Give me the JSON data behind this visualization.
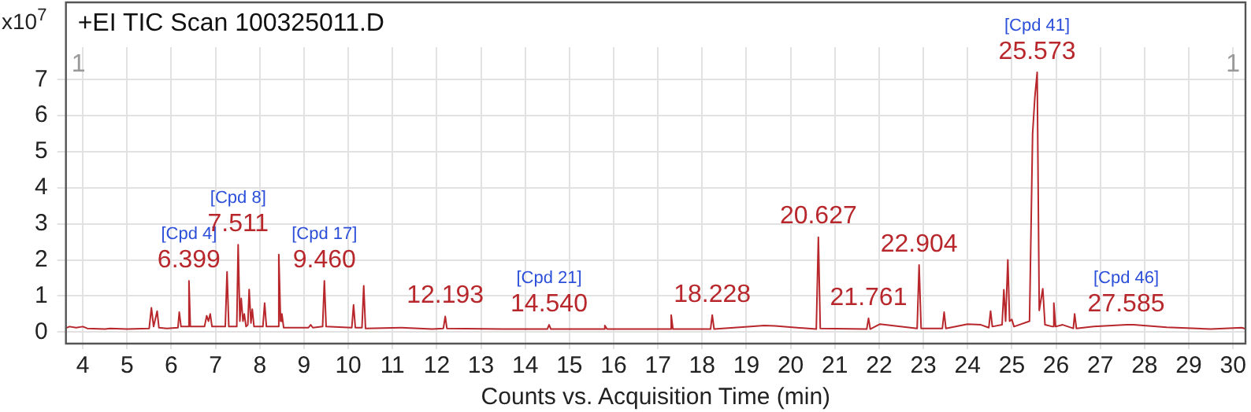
{
  "chart_data": {
    "type": "line",
    "title": "+EI TIC Scan 100325011.D",
    "xlabel": "Counts vs. Acquisition Time (min)",
    "ylabel": "x10$^{7}$",
    "xlim": [
      3.6,
      30.3
    ],
    "xticks": [
      4,
      5,
      6,
      7,
      8,
      9,
      10,
      11,
      12,
      13,
      14,
      15,
      16,
      17,
      18,
      19,
      20,
      21,
      22,
      23,
      24,
      25,
      26,
      27,
      28,
      29,
      30
    ],
    "ylim": [
      -0.3,
      7.9
    ],
    "yticks": [
      0,
      1,
      2,
      3,
      4,
      5,
      6,
      7
    ],
    "grid": true,
    "legend": false,
    "marker": "none",
    "series": [
      {
        "color": "#b8272c",
        "x": [
          3.6,
          3.7,
          3.85,
          4.0,
          4.1,
          4.5,
          4.62,
          5.0,
          5.5,
          5.55,
          5.6,
          5.68,
          5.72,
          5.9,
          6.15,
          6.18,
          6.22,
          6.37,
          6.399,
          6.43,
          6.75,
          6.8,
          6.84,
          6.88,
          6.92,
          7.22,
          7.26,
          7.3,
          7.48,
          7.511,
          7.55,
          7.58,
          7.62,
          7.65,
          7.69,
          7.73,
          7.76,
          7.8,
          7.83,
          7.87,
          8.07,
          8.11,
          8.15,
          8.4,
          8.43,
          8.47,
          8.5,
          8.54,
          9.1,
          9.15,
          9.2,
          9.42,
          9.46,
          9.5,
          10.08,
          10.12,
          10.16,
          10.31,
          10.35,
          10.39,
          11.2,
          11.9,
          12.15,
          12.193,
          12.23,
          13.5,
          14.5,
          14.54,
          14.58,
          15.77,
          15.8,
          15.85,
          17.27,
          17.3,
          17.34,
          18.19,
          18.228,
          18.27,
          19.1,
          19.4,
          19.65,
          20.58,
          20.627,
          20.67,
          21.72,
          21.761,
          21.8,
          22.02,
          22.86,
          22.904,
          22.95,
          23.43,
          23.47,
          23.51,
          24.0,
          24.3,
          24.48,
          24.52,
          24.56,
          24.78,
          24.82,
          24.86,
          24.91,
          24.95,
          25.0,
          25.05,
          25.4,
          25.47,
          25.52,
          25.573,
          25.62,
          25.7,
          25.75,
          25.92,
          25.95,
          25.99,
          26.15,
          26.39,
          26.42,
          26.46,
          26.85,
          27.6,
          27.75,
          28.5,
          29.5,
          30.2,
          30.3
        ],
        "values": [
          0.1,
          0.15,
          0.12,
          0.15,
          0.1,
          0.08,
          0.1,
          0.08,
          0.1,
          0.67,
          0.15,
          0.58,
          0.12,
          0.1,
          0.12,
          0.55,
          0.15,
          0.15,
          1.42,
          0.15,
          0.15,
          0.45,
          0.3,
          0.5,
          0.15,
          0.15,
          1.67,
          0.15,
          0.15,
          2.42,
          0.3,
          0.93,
          0.3,
          0.5,
          0.15,
          0.2,
          1.18,
          0.25,
          0.63,
          0.15,
          0.15,
          0.8,
          0.15,
          0.15,
          2.15,
          0.3,
          0.5,
          0.12,
          0.12,
          0.2,
          0.12,
          0.15,
          1.42,
          0.15,
          0.12,
          0.75,
          0.12,
          0.12,
          1.28,
          0.1,
          0.12,
          0.08,
          0.1,
          0.43,
          0.1,
          0.08,
          0.08,
          0.2,
          0.08,
          0.08,
          0.18,
          0.08,
          0.08,
          0.47,
          0.08,
          0.08,
          0.47,
          0.08,
          0.15,
          0.18,
          0.17,
          0.08,
          2.63,
          0.1,
          0.08,
          0.38,
          0.08,
          0.22,
          0.1,
          1.86,
          0.1,
          0.1,
          0.55,
          0.1,
          0.22,
          0.2,
          0.12,
          0.58,
          0.15,
          0.2,
          1.17,
          0.3,
          2.0,
          0.3,
          0.35,
          0.15,
          0.3,
          5.5,
          6.5,
          7.2,
          0.6,
          1.2,
          0.2,
          0.15,
          0.8,
          0.15,
          0.2,
          0.1,
          0.5,
          0.1,
          0.15,
          0.2,
          0.2,
          0.13,
          0.08,
          0.12,
          0.08
        ]
      }
    ],
    "annotations": [
      "1",
      "1",
      {
        "text": "[Cpd 4]",
        "x": 6.399,
        "y": 1.42
      },
      {
        "text": "6.399",
        "x": 6.399,
        "y": 1.42
      },
      {
        "text": "[Cpd 8]",
        "x": 7.511,
        "y": 2.42
      },
      {
        "text": "7.511",
        "x": 7.511,
        "y": 2.42
      },
      {
        "text": "[Cpd 17]",
        "x": 9.46,
        "y": 1.42
      },
      {
        "text": "9.460",
        "x": 9.46,
        "y": 1.42
      },
      {
        "text": "12.193",
        "x": 12.193,
        "y": 0.43
      },
      {
        "text": "[Cpd 21]",
        "x": 14.54,
        "y": 0.2
      },
      {
        "text": "14.540",
        "x": 14.54,
        "y": 0.2
      },
      {
        "text": "18.228",
        "x": 18.228,
        "y": 0.47
      },
      {
        "text": "20.627",
        "x": 20.627,
        "y": 2.63
      },
      {
        "text": "21.761",
        "x": 21.761,
        "y": 0.38
      },
      {
        "text": "22.904",
        "x": 22.904,
        "y": 1.86
      },
      {
        "text": "[Cpd 41]",
        "x": 25.573,
        "y": 7.2
      },
      {
        "text": "25.573",
        "x": 25.573,
        "y": 7.2
      },
      {
        "text": "[Cpd 46]",
        "x": 27.585,
        "y": 0.2
      },
      {
        "text": "27.585",
        "x": 27.585,
        "y": 0.2
      }
    ]
  }
}
